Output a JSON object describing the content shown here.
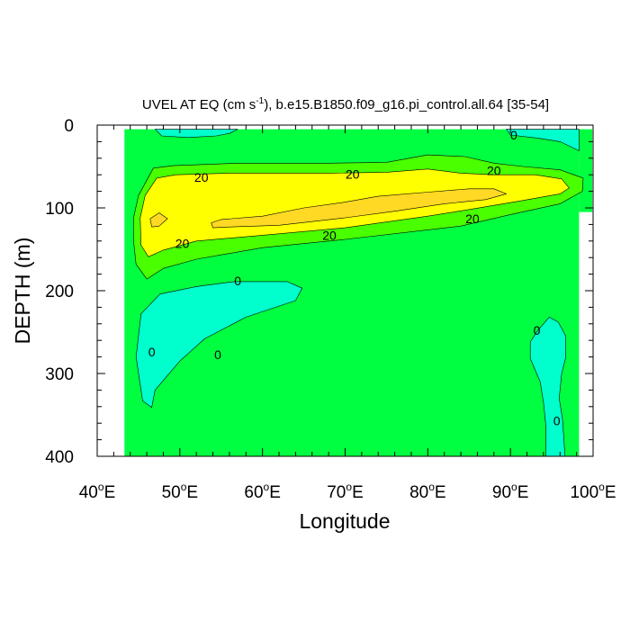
{
  "chart_data": {
    "type": "heatmap",
    "subtype": "filled-contour",
    "title": "UVEL AT EQ (cm s",
    "title_exponent": "-1",
    "title_suffix": "), b.e15.B1850.f09_g16.pi_control.all.64 [35-54]",
    "xlabel": "Longitude",
    "ylabel": "DEPTH (m)",
    "xlim": [
      40,
      100
    ],
    "ylim": [
      400,
      0
    ],
    "x_tick_values": [
      40,
      50,
      60,
      70,
      80,
      90,
      100
    ],
    "x_ticks": [
      "40",
      "50",
      "60",
      "70",
      "80",
      "90",
      "100"
    ],
    "x_tick_suffix": "E",
    "y_ticks": [
      0,
      100,
      200,
      300,
      400
    ],
    "data_extent": {
      "lon": [
        43.3,
        98.3
      ],
      "depth": [
        5,
        400
      ]
    },
    "contour_levels": [
      -10,
      0,
      10,
      20,
      30
    ],
    "colors": {
      "below_0": "#00ffcc",
      "0_to_10": "#00ff40",
      "10_to_20": "#49ff00",
      "20_to_30": "#ffff00",
      "above_30": "#ffd923"
    },
    "regions": [
      {
        "level": "below_0",
        "points": [
          [
            64.8,
            197
          ],
          [
            64,
            212
          ],
          [
            58,
            232
          ],
          [
            53,
            258
          ],
          [
            50,
            285
          ],
          [
            47,
            320
          ],
          [
            46.6,
            341
          ],
          [
            45.5,
            333
          ],
          [
            44.7,
            280
          ],
          [
            45.3,
            228
          ],
          [
            47.6,
            204
          ],
          [
            52,
            195
          ],
          [
            56.6,
            189
          ],
          [
            63,
            189
          ]
        ]
      },
      {
        "level": "below_0",
        "points": [
          [
            93.3,
            248
          ],
          [
            94.7,
            232
          ],
          [
            95.8,
            238
          ],
          [
            96.7,
            255
          ],
          [
            96.7,
            280
          ],
          [
            96.2,
            300
          ],
          [
            95.9,
            330
          ],
          [
            96.3,
            355
          ],
          [
            96.6,
            400
          ],
          [
            94.3,
            400
          ],
          [
            94.3,
            365
          ],
          [
            94,
            335
          ],
          [
            93.6,
            310
          ],
          [
            92.4,
            282
          ],
          [
            92.4,
            262
          ]
        ]
      },
      {
        "level": "below_0",
        "points": [
          [
            47,
            5
          ],
          [
            57,
            5
          ],
          [
            56,
            10
          ],
          [
            54.4,
            13
          ],
          [
            51,
            15
          ],
          [
            47.8,
            13
          ]
        ]
      },
      {
        "level": "below_0",
        "points": [
          [
            89.5,
            5
          ],
          [
            98.3,
            5
          ],
          [
            98.3,
            31
          ],
          [
            96,
            20
          ],
          [
            93.5,
            16
          ],
          [
            90,
            12
          ]
        ]
      },
      {
        "level": "10_to_20",
        "points": [
          [
            44.4,
            112
          ],
          [
            45,
            85
          ],
          [
            46.8,
            52
          ],
          [
            49.2,
            49
          ],
          [
            57,
            46
          ],
          [
            68,
            46
          ],
          [
            75,
            45
          ],
          [
            80,
            36
          ],
          [
            84.5,
            38
          ],
          [
            88,
            46
          ],
          [
            91.5,
            50
          ],
          [
            96,
            54
          ],
          [
            98.8,
            64
          ],
          [
            98.7,
            80
          ],
          [
            96,
            95
          ],
          [
            90,
            108
          ],
          [
            84,
            122
          ],
          [
            70,
            138
          ],
          [
            60,
            148
          ],
          [
            52,
            162
          ],
          [
            48,
            173
          ],
          [
            46,
            186
          ],
          [
            44.7,
            168
          ],
          [
            44.4,
            140
          ]
        ]
      },
      {
        "level": "20_to_30",
        "points": [
          [
            45.2,
            112
          ],
          [
            45.8,
            85
          ],
          [
            47.2,
            64
          ],
          [
            49.5,
            60
          ],
          [
            56,
            58
          ],
          [
            68,
            58
          ],
          [
            75,
            57
          ],
          [
            80,
            53
          ],
          [
            84,
            58
          ],
          [
            88,
            60
          ],
          [
            93,
            60
          ],
          [
            96.2,
            65
          ],
          [
            97.1,
            76
          ],
          [
            96,
            83
          ],
          [
            91,
            92
          ],
          [
            85,
            102
          ],
          [
            80,
            110
          ],
          [
            70,
            124
          ],
          [
            60,
            133
          ],
          [
            52,
            140
          ],
          [
            48,
            151
          ],
          [
            46.2,
            159
          ],
          [
            45.3,
            145
          ]
        ]
      },
      {
        "level": "above_30",
        "points": [
          [
            46.4,
            113
          ],
          [
            47.5,
            106
          ],
          [
            48.5,
            113
          ],
          [
            47.5,
            122
          ],
          [
            46.6,
            123
          ]
        ]
      },
      {
        "level": "above_30",
        "points": [
          [
            53.8,
            118
          ],
          [
            55,
            114
          ],
          [
            60,
            110
          ],
          [
            65,
            100
          ],
          [
            70,
            93
          ],
          [
            74,
            86
          ],
          [
            80,
            81
          ],
          [
            85,
            77
          ],
          [
            88,
            77
          ],
          [
            89.5,
            83
          ],
          [
            87,
            90
          ],
          [
            82,
            95
          ],
          [
            76,
            104
          ],
          [
            70,
            112
          ],
          [
            62,
            121
          ],
          [
            56,
            123
          ],
          [
            54,
            124
          ]
        ]
      }
    ],
    "annotations": [
      {
        "text": "20",
        "x": 52.6,
        "y": 63
      },
      {
        "text": "20",
        "x": 70.9,
        "y": 59
      },
      {
        "text": "20",
        "x": 88.0,
        "y": 55
      },
      {
        "text": "20",
        "x": 50.3,
        "y": 143
      },
      {
        "text": "20",
        "x": 68.1,
        "y": 133
      },
      {
        "text": "20",
        "x": 85.4,
        "y": 113
      },
      {
        "text": "0",
        "x": 57.0,
        "y": 188
      },
      {
        "text": "0",
        "x": 46.6,
        "y": 274
      },
      {
        "text": "0",
        "x": 54.6,
        "y": 277
      },
      {
        "text": "0",
        "x": 93.2,
        "y": 248
      },
      {
        "text": "0",
        "x": 95.6,
        "y": 357
      },
      {
        "text": "0",
        "x": 90.4,
        "y": 12
      }
    ]
  }
}
